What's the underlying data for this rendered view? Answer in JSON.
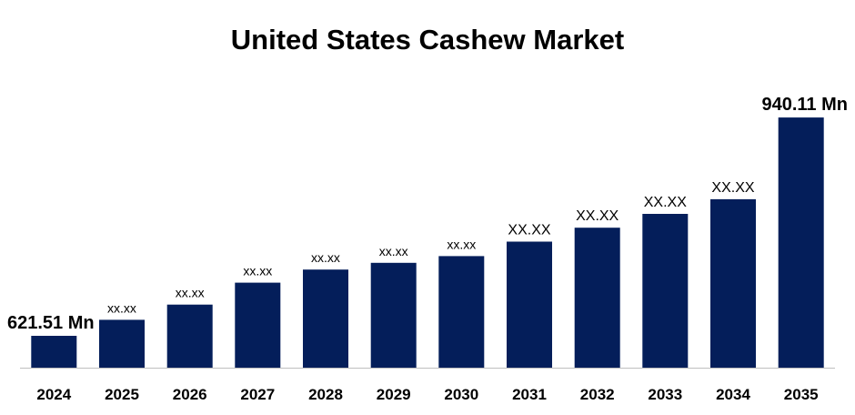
{
  "chart_data": {
    "type": "bar",
    "title": "United States Cashew Market",
    "xlabel": "",
    "ylabel": "",
    "categories": [
      "2024",
      "2025",
      "2026",
      "2027",
      "2028",
      "2029",
      "2030",
      "2031",
      "2032",
      "2033",
      "2034",
      "2035"
    ],
    "values": [
      621.51,
      644.9,
      667.1,
      699.1,
      718.2,
      728.0,
      737.8,
      759.0,
      779.3,
      799.5,
      820.8,
      940.11
    ],
    "data_labels": [
      "621.51 Mn",
      "xx.xx",
      "xx.xx",
      "xx.xx",
      "xx.xx",
      "xx.xx",
      "xx.xx",
      "XX.XX",
      "XX.XX",
      "XX.XX",
      "XX.XX",
      "940.11 Mn"
    ],
    "ylim": [
      575,
      1000
    ],
    "grid": false,
    "legend": "none",
    "colors": {
      "bar": "#041E5A",
      "axis": "#BFBFBF",
      "text": "#000000"
    }
  }
}
